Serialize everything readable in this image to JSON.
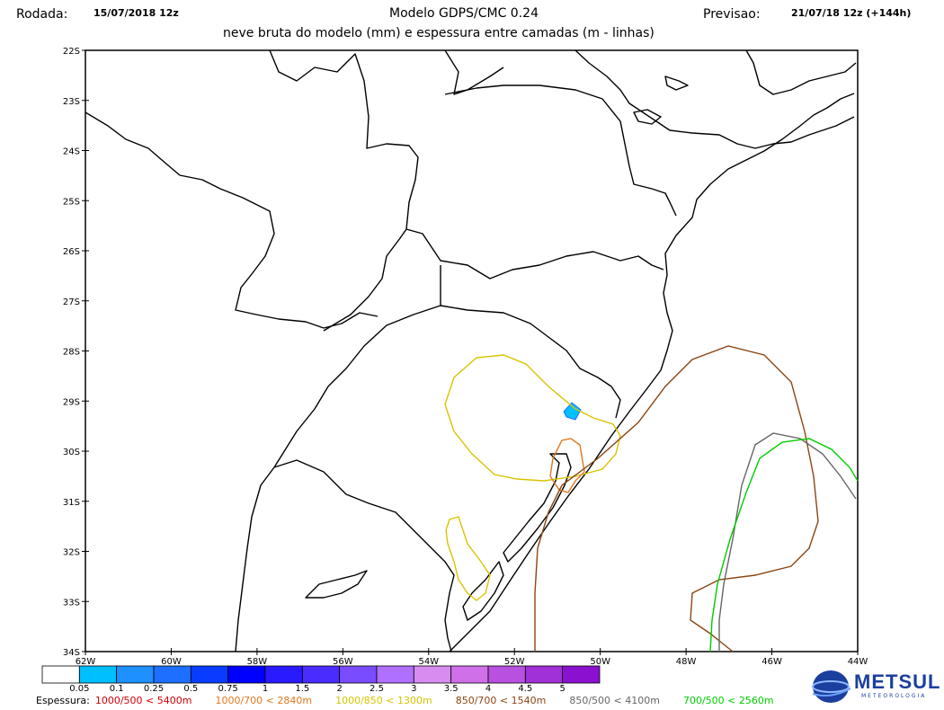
{
  "header": {
    "rodada_label": "Rodada:",
    "rodada_value": "15/07/2018 12z",
    "title": "Modelo GDPS/CMC 0.24",
    "subtitle": "neve bruta do modelo (mm) e espessura entre camadas (m - linhas)",
    "previsao_label": "Previsao:",
    "previsao_value": "21/07/18 12z (+144h)"
  },
  "map": {
    "lon_range": [
      -62,
      -44
    ],
    "lat_range": [
      -34,
      -22
    ],
    "lat_ticks": [
      "22S",
      "23S",
      "24S",
      "25S",
      "26S",
      "27S",
      "28S",
      "29S",
      "30S",
      "31S",
      "32S",
      "33S",
      "34S"
    ],
    "lon_ticks": [
      "62W",
      "60W",
      "58W",
      "56W",
      "54W",
      "52W",
      "50W",
      "48W",
      "46W",
      "44W"
    ]
  },
  "colorbar": {
    "colors": [
      "#ffffff",
      "#00bfff",
      "#1e90ff",
      "#1e6fff",
      "#0a3cff",
      "#0000ff",
      "#2a1aff",
      "#4b2cff",
      "#7a4cff",
      "#b070ff",
      "#d98cf0",
      "#d070e8",
      "#b850e0",
      "#a030d8",
      "#8c10d0"
    ],
    "labels": [
      "0.05",
      "0.1",
      "0.25",
      "0.5",
      "0.75",
      "1",
      "1.5",
      "2",
      "2.5",
      "3",
      "3.5",
      "4",
      "4.5",
      "5"
    ]
  },
  "legend": {
    "prefix": "Espessura:",
    "items": [
      {
        "text": "1000/500 < 5400m",
        "color": "#d00000"
      },
      {
        "text": "1000/700 < 2840m",
        "color": "#e07820"
      },
      {
        "text": "1000/850 < 1300m",
        "color": "#d8c400"
      },
      {
        "text": "850/700 < 1540m",
        "color": "#8b4513"
      },
      {
        "text": "850/500 < 4100m",
        "color": "#666666"
      },
      {
        "text": "700/500 < 2560m",
        "color": "#00cc00"
      }
    ]
  },
  "logo": {
    "name": "METSUL",
    "sub": "METEOROLOGIA"
  }
}
